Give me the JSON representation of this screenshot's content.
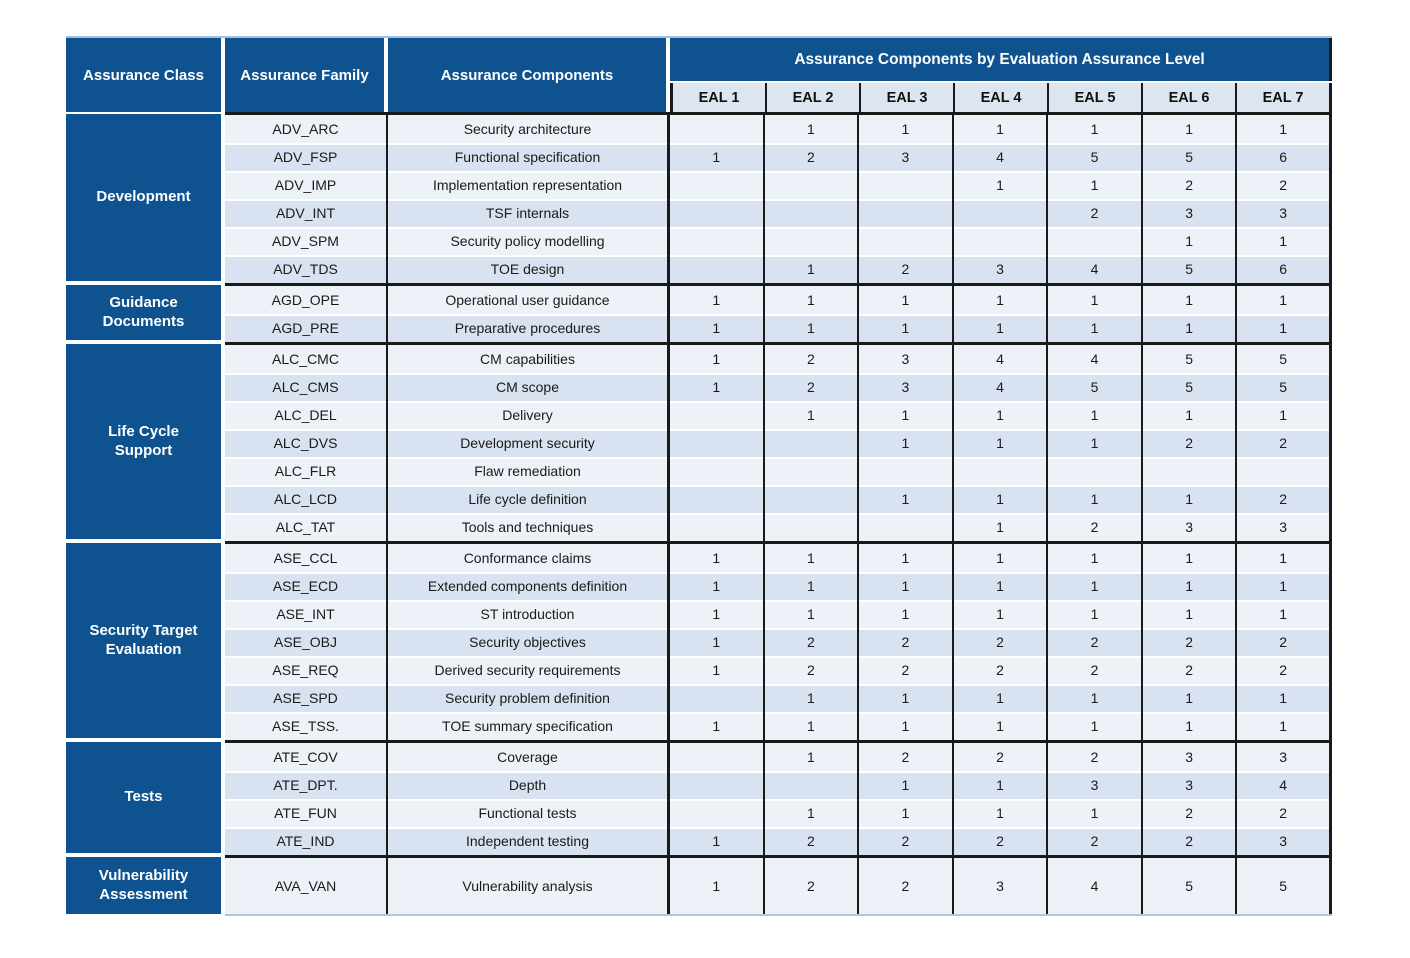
{
  "colors": {
    "header-blue": "#0E5390",
    "row-light": "#EDF1F8",
    "row-dark": "#D9E2F0",
    "eal-row-bg": "#DDE5F0",
    "line-black": "#1A1A1A",
    "top-line": "#9CC2E5",
    "bottom-line": "#AFC7DE"
  },
  "table": {
    "headers": {
      "assurance_class": "Assurance Class",
      "assurance_family": "Assurance Family",
      "assurance_components": "Assurance Components",
      "eal_group": "Assurance Components by Evaluation Assurance Level",
      "eal_levels": [
        "EAL 1",
        "EAL 2",
        "EAL 3",
        "EAL 4",
        "EAL 5",
        "EAL 6",
        "EAL 7"
      ]
    },
    "sections": [
      {
        "class": "Development",
        "rows": [
          {
            "family": "ADV_ARC",
            "component": "Security architecture",
            "levels": [
              "",
              "1",
              "1",
              "1",
              "1",
              "1",
              "1"
            ]
          },
          {
            "family": "ADV_FSP",
            "component": "Functional specification",
            "levels": [
              "1",
              "2",
              "3",
              "4",
              "5",
              "5",
              "6"
            ]
          },
          {
            "family": "ADV_IMP",
            "component": "Implementation representation",
            "levels": [
              "",
              "",
              "",
              "1",
              "1",
              "2",
              "2"
            ]
          },
          {
            "family": "ADV_INT",
            "component": "TSF internals",
            "levels": [
              "",
              "",
              "",
              "",
              "2",
              "3",
              "3"
            ]
          },
          {
            "family": "ADV_SPM",
            "component": "Security policy modelling",
            "levels": [
              "",
              "",
              "",
              "",
              "",
              "1",
              "1"
            ]
          },
          {
            "family": "ADV_TDS",
            "component": "TOE design",
            "levels": [
              "",
              "1",
              "2",
              "3",
              "4",
              "5",
              "6"
            ]
          }
        ]
      },
      {
        "class": "Guidance Documents",
        "rows": [
          {
            "family": "AGD_OPE",
            "component": "Operational user guidance",
            "levels": [
              "1",
              "1",
              "1",
              "1",
              "1",
              "1",
              "1"
            ]
          },
          {
            "family": "AGD_PRE",
            "component": "Preparative procedures",
            "levels": [
              "1",
              "1",
              "1",
              "1",
              "1",
              "1",
              "1"
            ]
          }
        ]
      },
      {
        "class": "Life Cycle Support",
        "rows": [
          {
            "family": "ALC_CMC",
            "component": "CM capabilities",
            "levels": [
              "1",
              "2",
              "3",
              "4",
              "4",
              "5",
              "5"
            ]
          },
          {
            "family": "ALC_CMS",
            "component": "CM scope",
            "levels": [
              "1",
              "2",
              "3",
              "4",
              "5",
              "5",
              "5"
            ]
          },
          {
            "family": "ALC_DEL",
            "component": "Delivery",
            "levels": [
              "",
              "1",
              "1",
              "1",
              "1",
              "1",
              "1"
            ]
          },
          {
            "family": "ALC_DVS",
            "component": "Development security",
            "levels": [
              "",
              "",
              "1",
              "1",
              "1",
              "2",
              "2"
            ]
          },
          {
            "family": "ALC_FLR",
            "component": "Flaw remediation",
            "levels": [
              "",
              "",
              "",
              "",
              "",
              "",
              ""
            ]
          },
          {
            "family": "ALC_LCD",
            "component": "Life cycle definition",
            "levels": [
              "",
              "",
              "1",
              "1",
              "1",
              "1",
              "2"
            ]
          },
          {
            "family": "ALC_TAT",
            "component": "Tools and techniques",
            "levels": [
              "",
              "",
              "",
              "1",
              "2",
              "3",
              "3"
            ]
          }
        ]
      },
      {
        "class": "Security Target Evaluation",
        "rows": [
          {
            "family": "ASE_CCL",
            "component": "Conformance claims",
            "levels": [
              "1",
              "1",
              "1",
              "1",
              "1",
              "1",
              "1"
            ]
          },
          {
            "family": "ASE_ECD",
            "component": "Extended components definition",
            "levels": [
              "1",
              "1",
              "1",
              "1",
              "1",
              "1",
              "1"
            ]
          },
          {
            "family": "ASE_INT",
            "component": "ST introduction",
            "levels": [
              "1",
              "1",
              "1",
              "1",
              "1",
              "1",
              "1"
            ]
          },
          {
            "family": "ASE_OBJ",
            "component": "Security objectives",
            "levels": [
              "1",
              "2",
              "2",
              "2",
              "2",
              "2",
              "2"
            ]
          },
          {
            "family": "ASE_REQ",
            "component": "Derived security requirements",
            "levels": [
              "1",
              "2",
              "2",
              "2",
              "2",
              "2",
              "2"
            ]
          },
          {
            "family": "ASE_SPD",
            "component": "Security problem definition",
            "levels": [
              "",
              "1",
              "1",
              "1",
              "1",
              "1",
              "1"
            ]
          },
          {
            "family": "ASE_TSS.",
            "component": "TOE summary specification",
            "levels": [
              "1",
              "1",
              "1",
              "1",
              "1",
              "1",
              "1"
            ]
          }
        ]
      },
      {
        "class": "Tests",
        "rows": [
          {
            "family": "ATE_COV",
            "component": "Coverage",
            "levels": [
              "",
              "1",
              "2",
              "2",
              "2",
              "3",
              "3"
            ]
          },
          {
            "family": "ATE_DPT.",
            "component": "Depth",
            "levels": [
              "",
              "",
              "1",
              "1",
              "3",
              "3",
              "4"
            ]
          },
          {
            "family": "ATE_FUN",
            "component": "Functional tests",
            "levels": [
              "",
              "1",
              "1",
              "1",
              "1",
              "2",
              "2"
            ]
          },
          {
            "family": "ATE_IND",
            "component": "Independent testing",
            "levels": [
              "1",
              "2",
              "2",
              "2",
              "2",
              "2",
              "3"
            ]
          }
        ]
      },
      {
        "class": "Vulnerability Assessment",
        "rows": [
          {
            "family": "AVA_VAN",
            "component": "Vulnerability analysis",
            "levels": [
              "1",
              "2",
              "2",
              "3",
              "4",
              "5",
              "5"
            ]
          }
        ]
      }
    ]
  }
}
